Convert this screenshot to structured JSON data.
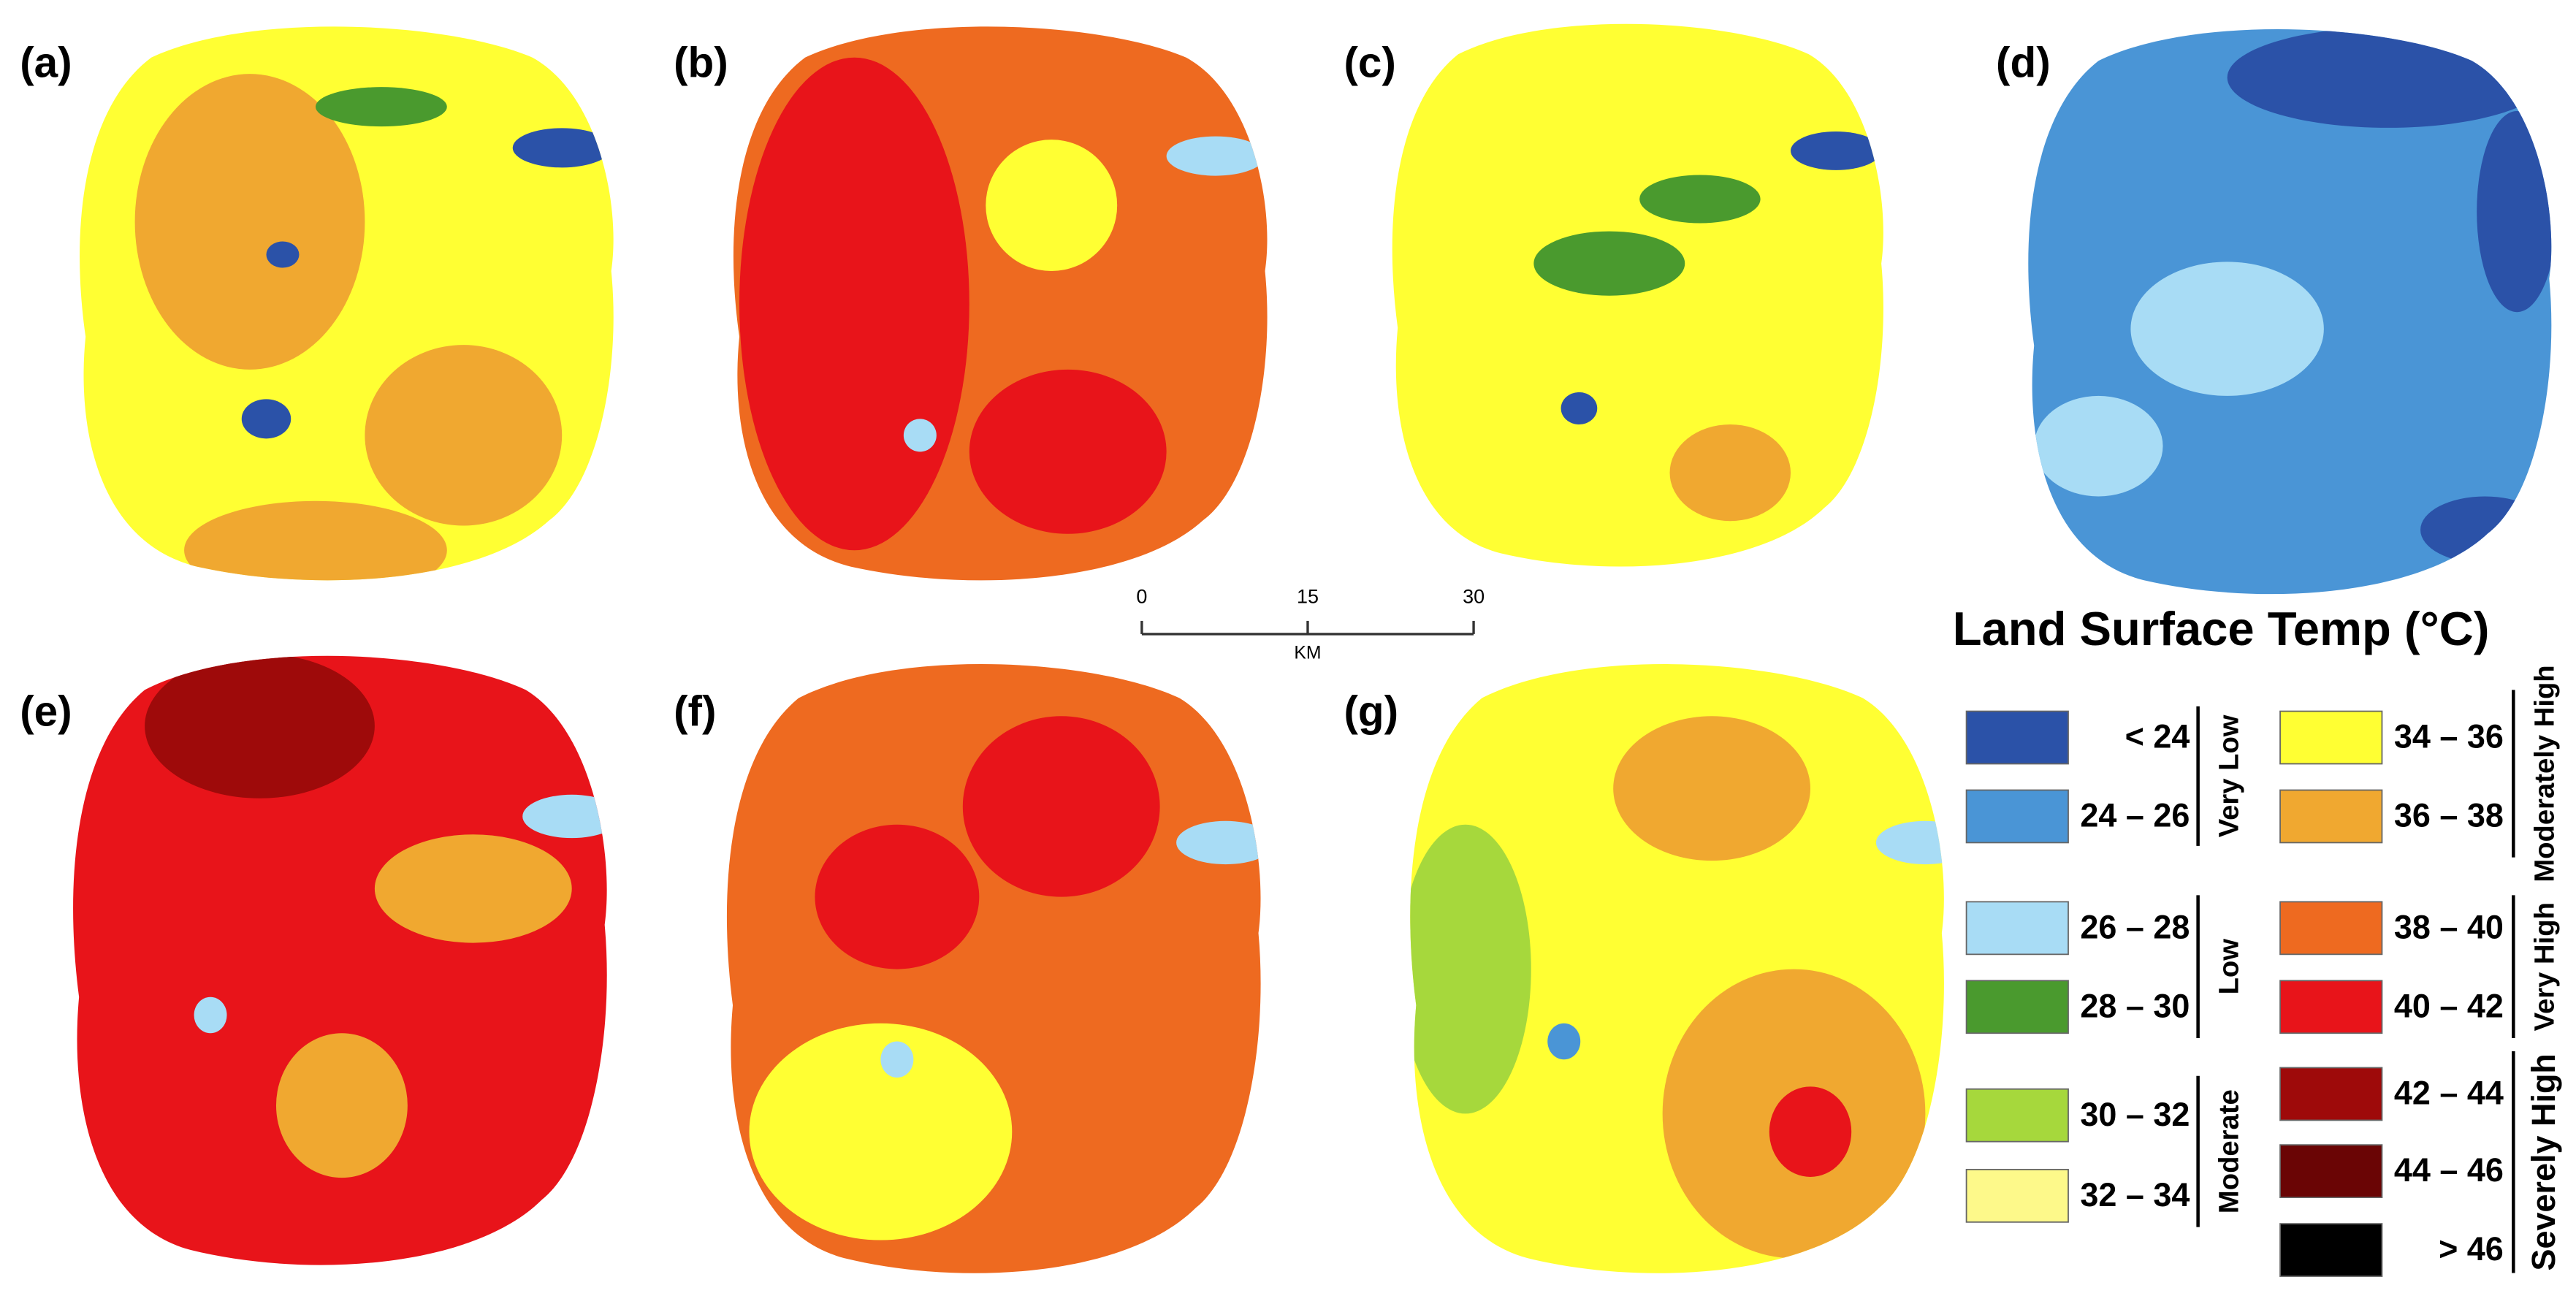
{
  "panels": [
    {
      "label": "(a)"
    },
    {
      "label": "(b)"
    },
    {
      "label": "(c)"
    },
    {
      "label": "(d)"
    },
    {
      "label": "(e)"
    },
    {
      "label": "(f)"
    },
    {
      "label": "(g)"
    }
  ],
  "scale_bar": {
    "ticks": [
      "0",
      "15",
      "30"
    ],
    "unit": "KM"
  },
  "legend": {
    "title": "Land Surface Temp (°C)",
    "classes": [
      {
        "label": "< 24",
        "color": "#2b52a8"
      },
      {
        "label": "24 – 26",
        "color": "#4a95d6"
      },
      {
        "label": "26 – 28",
        "color": "#a8dcf5"
      },
      {
        "label": "28 – 30",
        "color": "#4a9a2e"
      },
      {
        "label": "30 – 32",
        "color": "#a6d83c"
      },
      {
        "label": "32 – 34",
        "color": "#fdf98a"
      },
      {
        "label": "34 – 36",
        "color": "#ffff33"
      },
      {
        "label": "36 – 38",
        "color": "#f0a830"
      },
      {
        "label": "38 – 40",
        "color": "#ee6a20"
      },
      {
        "label": "40 – 42",
        "color": "#e8141a"
      },
      {
        "label": "42 – 44",
        "color": "#9e0a0a"
      },
      {
        "label": "44 – 46",
        "color": "#6a0505"
      },
      {
        "label": "> 46",
        "color": "#000000"
      }
    ],
    "groups": [
      {
        "label": "Very Low"
      },
      {
        "label": "Low"
      },
      {
        "label": "Moderate"
      },
      {
        "label": "Moderately High"
      },
      {
        "label": "Very High"
      },
      {
        "label": "Severely High"
      }
    ]
  }
}
